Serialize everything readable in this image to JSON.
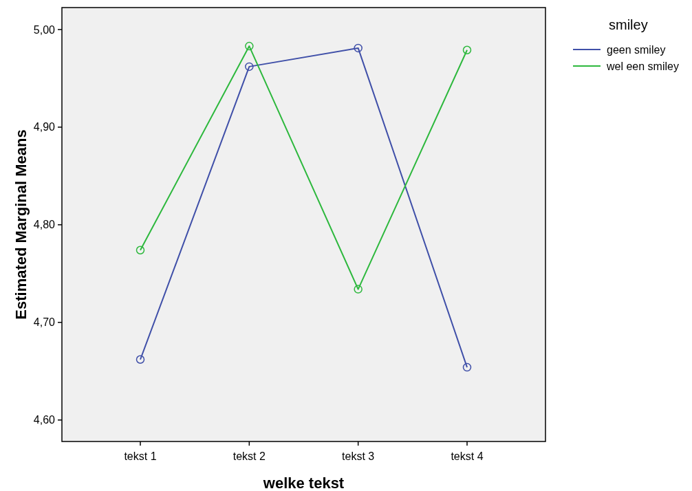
{
  "chart_data": {
    "type": "line",
    "xlabel": "welke tekst",
    "ylabel": "Estimated Marginal Means",
    "legend_title": "smiley",
    "categories": [
      "tekst 1",
      "tekst 2",
      "tekst 3",
      "tekst 4"
    ],
    "series": [
      {
        "name": "geen smiley",
        "color": "#3f4fa8",
        "values": [
          4.662,
          4.962,
          4.981,
          4.654
        ]
      },
      {
        "name": "wel een smiley",
        "color": "#2db83d",
        "values": [
          4.774,
          4.983,
          4.734,
          4.979
        ]
      }
    ],
    "ylim": [
      4.578,
      5.0225
    ],
    "yticks": [
      {
        "value": 4.6,
        "label": "4,60"
      },
      {
        "value": 4.7,
        "label": "4,70"
      },
      {
        "value": 4.8,
        "label": "4,80"
      },
      {
        "value": 4.9,
        "label": "4,90"
      },
      {
        "value": 5.0,
        "label": "5,00"
      }
    ],
    "grid": false,
    "legend": "top right",
    "marker": "circle",
    "line_style": "solid"
  }
}
